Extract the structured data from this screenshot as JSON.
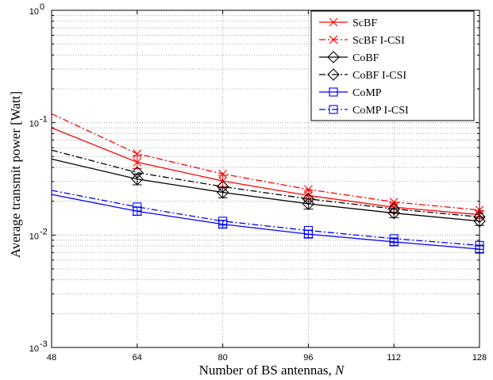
{
  "chart_data": {
    "type": "line",
    "title": "",
    "xlabel": "Number of BS antennas, ",
    "xlabel_var": "N",
    "ylabel": "Average transmit power [Watt]",
    "x": [
      48,
      64,
      80,
      96,
      112,
      128
    ],
    "x_tick_labels": [
      "48",
      "64",
      "80",
      "96",
      "112",
      "128"
    ],
    "xlim": [
      48,
      128
    ],
    "ylim": [
      0.001,
      1
    ],
    "yscale": "log",
    "y_ticks": [
      {
        "value": 0.001,
        "base": "10",
        "exp": "-3"
      },
      {
        "value": 0.01,
        "base": "10",
        "exp": "-2"
      },
      {
        "value": 0.1,
        "base": "10",
        "exp": "-1"
      },
      {
        "value": 1,
        "base": "10",
        "exp": "0"
      }
    ],
    "grid": true,
    "legend_position": "top-right",
    "series": [
      {
        "name": "ScBF",
        "color": "#ff0000",
        "dash": "solid",
        "marker": "x",
        "values": [
          0.09,
          0.0445,
          0.0303,
          0.0225,
          0.0177,
          0.0152
        ],
        "error": [
          [
            0.07,
            0.19
          ],
          [
            0.039,
            0.051
          ],
          [
            0.027,
            0.034
          ],
          [
            0.02,
            0.025
          ],
          [
            0.016,
            0.0195
          ],
          [
            0.014,
            0.0165
          ]
        ]
      },
      {
        "name": "ScBF I-CSI",
        "color": "#ff0000",
        "dash": "dashdot",
        "marker": "x",
        "values": [
          0.12,
          0.053,
          0.035,
          0.0255,
          0.0197,
          0.0167
        ],
        "error": null
      },
      {
        "name": "CoBF",
        "color": "#000000",
        "dash": "solid",
        "marker": "diamond",
        "values": [
          0.0475,
          0.0315,
          0.024,
          0.019,
          0.0157,
          0.0133
        ],
        "error": [
          [
            0.041,
            0.054
          ],
          [
            0.028,
            0.035
          ],
          [
            0.0215,
            0.0265
          ],
          [
            0.017,
            0.021
          ],
          [
            0.0143,
            0.0172
          ],
          [
            0.0122,
            0.0145
          ]
        ]
      },
      {
        "name": "CoBF I-CSI",
        "color": "#000000",
        "dash": "dashdot",
        "marker": "diamond",
        "values": [
          0.057,
          0.036,
          0.027,
          0.021,
          0.0171,
          0.0145
        ],
        "error": null
      },
      {
        "name": "CoMP",
        "color": "#0000ff",
        "dash": "solid",
        "marker": "square",
        "values": [
          0.023,
          0.0163,
          0.0125,
          0.0102,
          0.0087,
          0.0075
        ],
        "error": [
          [
            0.021,
            0.0255
          ],
          [
            0.015,
            0.0178
          ],
          [
            0.0116,
            0.0135
          ],
          [
            0.0095,
            0.011
          ],
          [
            0.0081,
            0.0093
          ],
          [
            0.007,
            0.008
          ]
        ]
      },
      {
        "name": "CoMP I-CSI",
        "color": "#0000ff",
        "dash": "dashdot",
        "marker": "square",
        "values": [
          0.025,
          0.0178,
          0.0133,
          0.011,
          0.0093,
          0.0081
        ],
        "error": null
      }
    ]
  }
}
